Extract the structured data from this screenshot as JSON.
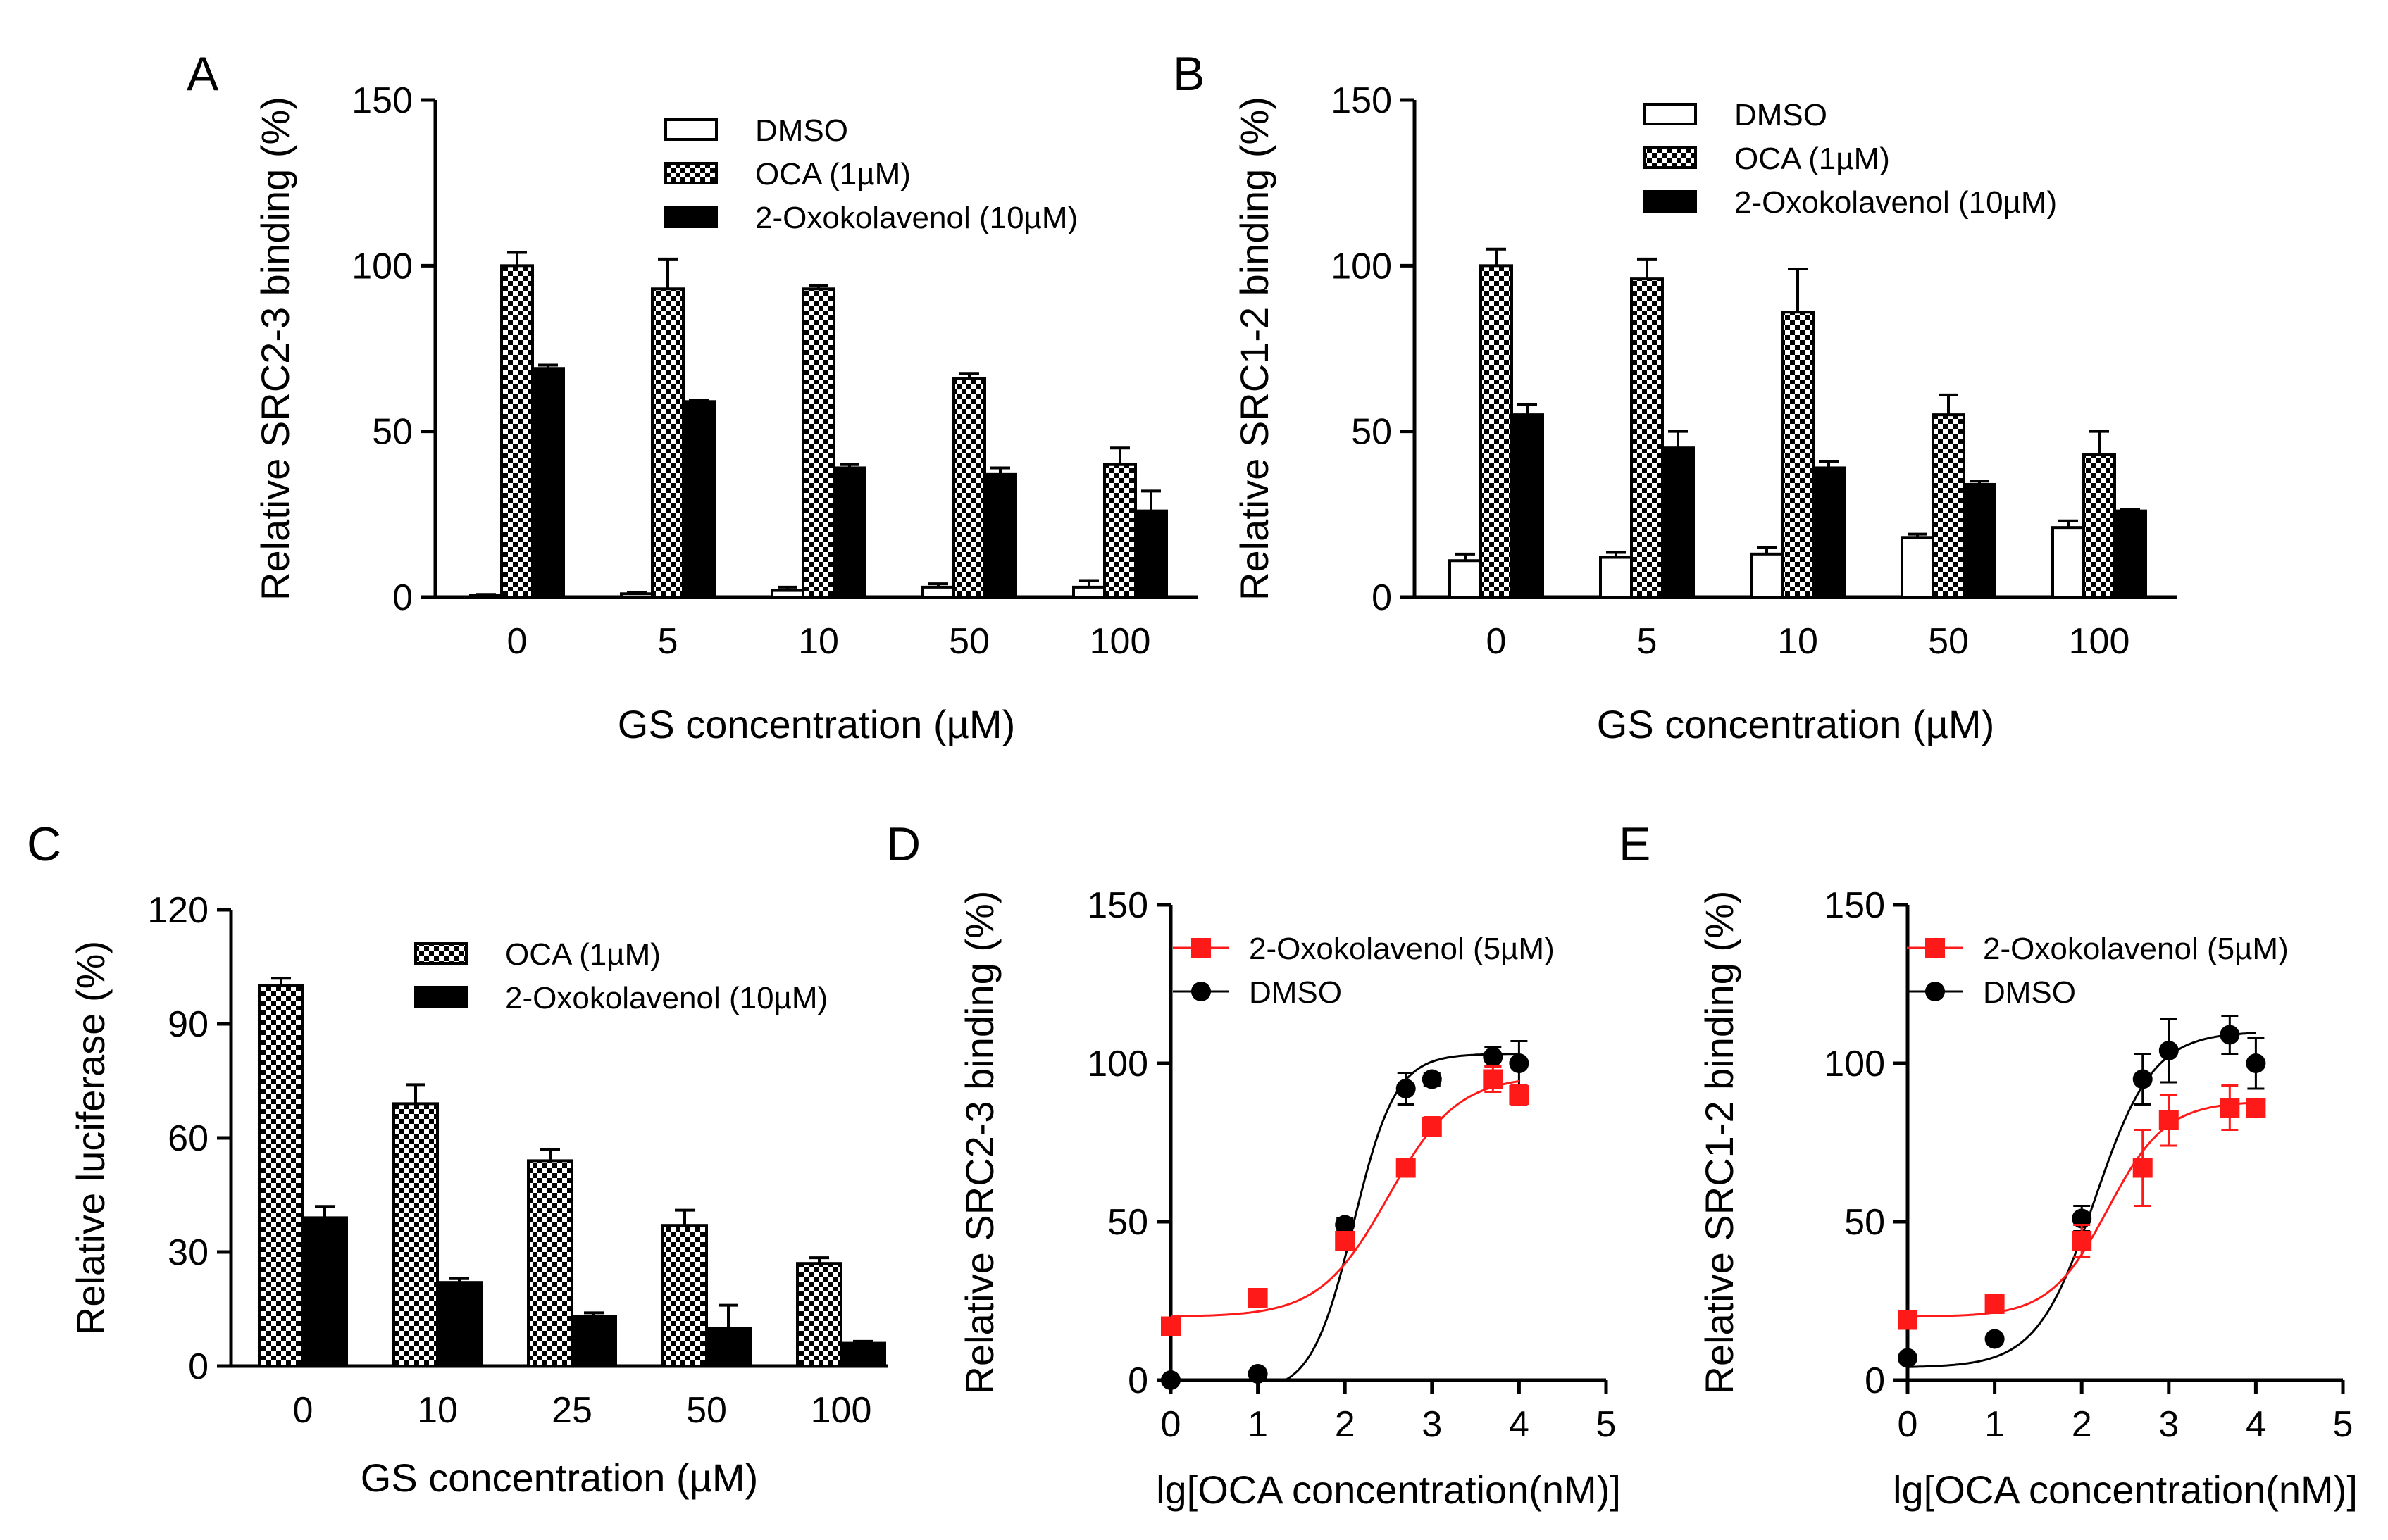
{
  "chart_data": [
    {
      "panel": "A",
      "type": "bar",
      "xlabel": "GS concentration (µM)",
      "ylabel": "Relative SRC2-3 binding (%)",
      "ylim": [
        0,
        150
      ],
      "yticks": [
        0,
        50,
        100,
        150
      ],
      "categories": [
        "0",
        "5",
        "10",
        "50",
        "100"
      ],
      "legend_position": "top-right",
      "series": [
        {
          "name": "DMSO",
          "pattern": "white",
          "values": [
            0.5,
            1,
            2,
            3,
            3
          ],
          "errors": [
            0.3,
            0.5,
            1,
            1,
            2
          ]
        },
        {
          "name": "OCA (1µM)",
          "pattern": "checker",
          "values": [
            100,
            93,
            93,
            66,
            40
          ],
          "errors": [
            4,
            9,
            1,
            1.5,
            5
          ]
        },
        {
          "name": "2-Oxokolavenol (10µM)",
          "pattern": "black",
          "values": [
            69,
            59,
            39,
            37,
            26
          ],
          "errors": [
            1,
            0.5,
            1,
            2,
            6
          ]
        }
      ]
    },
    {
      "panel": "B",
      "type": "bar",
      "xlabel": "GS concentration (µM)",
      "ylabel": "Relative SRC1-2 binding (%)",
      "ylim": [
        0,
        150
      ],
      "yticks": [
        0,
        50,
        100,
        150
      ],
      "categories": [
        "0",
        "5",
        "10",
        "50",
        "100"
      ],
      "legend_position": "top-right",
      "series": [
        {
          "name": "DMSO",
          "pattern": "white",
          "values": [
            11,
            12,
            13,
            18,
            21
          ],
          "errors": [
            2,
            1.5,
            2,
            1,
            2
          ]
        },
        {
          "name": "OCA (1µM)",
          "pattern": "checker",
          "values": [
            100,
            96,
            86,
            55,
            43
          ],
          "errors": [
            5,
            6,
            13,
            6,
            7
          ]
        },
        {
          "name": "2-Oxokolavenol (10µM)",
          "pattern": "black",
          "values": [
            55,
            45,
            39,
            34,
            26
          ],
          "errors": [
            3,
            5,
            2,
            1,
            0.5
          ]
        }
      ]
    },
    {
      "panel": "C",
      "type": "bar",
      "xlabel": "GS concentration (µM)",
      "ylabel": "Relative luciferase  (%)",
      "ylim": [
        0,
        120
      ],
      "yticks": [
        0,
        30,
        60,
        90,
        120
      ],
      "categories": [
        "0",
        "10",
        "25",
        "50",
        "100"
      ],
      "legend_position": "top-right",
      "series": [
        {
          "name": "OCA (1µM)",
          "pattern": "checker",
          "values": [
            100,
            69,
            54,
            37,
            27
          ],
          "errors": [
            2,
            5,
            3,
            4,
            1.5
          ]
        },
        {
          "name": "2-Oxokolavenol (10µM)",
          "pattern": "black",
          "values": [
            39,
            22,
            13,
            10,
            6
          ],
          "errors": [
            3,
            1,
            1,
            6,
            0.5
          ]
        }
      ]
    },
    {
      "panel": "D",
      "type": "line",
      "xlabel": "lg[OCA concentration(nM)]",
      "ylabel": "Relative SRC2-3 binding (%)",
      "xlim": [
        0,
        5
      ],
      "ylim": [
        0,
        150
      ],
      "xticks": [
        0,
        1,
        2,
        3,
        4,
        5
      ],
      "yticks": [
        0,
        50,
        100,
        150
      ],
      "legend_position": "top-left",
      "series": [
        {
          "name": "2-Oxokolavenol (5µM)",
          "color": "#ff1a1a",
          "marker": "square",
          "x": [
            0,
            1,
            2,
            2.7,
            3,
            3.7,
            4
          ],
          "y": [
            17,
            26,
            44,
            67,
            80,
            95,
            90
          ],
          "errors": [
            1,
            1,
            2,
            2,
            3,
            4,
            3
          ],
          "fit": {
            "bottom": 20,
            "top": 96,
            "logEC50": 2.5,
            "hill": 1.1
          }
        },
        {
          "name": "DMSO",
          "color": "#000000",
          "marker": "circle",
          "x": [
            0,
            1,
            2,
            2.7,
            3,
            3.7,
            4
          ],
          "y": [
            0,
            2,
            49,
            92,
            95,
            102,
            100
          ],
          "errors": [
            0.5,
            0.5,
            2,
            5,
            2,
            3,
            7
          ],
          "fit": {
            "bottom": -4,
            "top": 103,
            "logEC50": 2.1,
            "hill": 1.8
          }
        }
      ]
    },
    {
      "panel": "E",
      "type": "line",
      "xlabel": "lg[OCA concentration(nM)]",
      "ylabel": "Relative SRC1-2 binding (%)",
      "xlim": [
        0,
        5
      ],
      "ylim": [
        0,
        150
      ],
      "xticks": [
        0,
        1,
        2,
        3,
        4,
        5
      ],
      "yticks": [
        0,
        50,
        100,
        150
      ],
      "legend_position": "top-left",
      "series": [
        {
          "name": "2-Oxokolavenol (5µM)",
          "color": "#ff1a1a",
          "marker": "square",
          "x": [
            0,
            1,
            2,
            2.7,
            3,
            3.7,
            4
          ],
          "y": [
            19,
            24,
            44,
            67,
            82,
            86,
            86
          ],
          "errors": [
            1,
            1,
            5,
            12,
            8,
            7,
            2
          ],
          "fit": {
            "bottom": 20,
            "top": 88,
            "logEC50": 2.3,
            "hill": 1.3
          }
        },
        {
          "name": "DMSO",
          "color": "#000000",
          "marker": "circle",
          "x": [
            0,
            1,
            2,
            2.7,
            3,
            3.7,
            4
          ],
          "y": [
            7,
            13,
            51,
            95,
            104,
            109,
            100
          ],
          "errors": [
            1,
            1,
            4,
            8,
            10,
            6,
            8
          ],
          "fit": {
            "bottom": 4,
            "top": 110,
            "logEC50": 2.15,
            "hill": 1.3
          }
        }
      ]
    }
  ]
}
